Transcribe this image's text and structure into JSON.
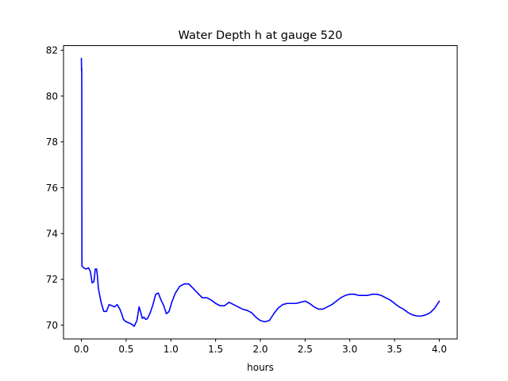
{
  "chart_data": {
    "type": "line",
    "title": "Water Depth h at gauge 520",
    "xlabel": "hours",
    "ylabel": "",
    "xlim": [
      -0.2,
      4.2
    ],
    "ylim": [
      69.4,
      82.2
    ],
    "xticks": [
      0.0,
      0.5,
      1.0,
      1.5,
      2.0,
      2.5,
      3.0,
      3.5,
      4.0
    ],
    "xtick_labels": [
      "0.0",
      "0.5",
      "1.0",
      "1.5",
      "2.0",
      "2.5",
      "3.0",
      "3.5",
      "4.0"
    ],
    "yticks": [
      70,
      72,
      74,
      76,
      78,
      80,
      82
    ],
    "ytick_labels": [
      "70",
      "72",
      "74",
      "76",
      "78",
      "80",
      "82"
    ],
    "grid": false,
    "series": [
      {
        "color": "#0000ff",
        "x": [
          0.0,
          0.002,
          0.004,
          0.006,
          0.01,
          0.03,
          0.05,
          0.08,
          0.1,
          0.12,
          0.14,
          0.155,
          0.17,
          0.18,
          0.19,
          0.2,
          0.22,
          0.25,
          0.28,
          0.31,
          0.34,
          0.37,
          0.4,
          0.43,
          0.45,
          0.47,
          0.5,
          0.53,
          0.56,
          0.59,
          0.62,
          0.645,
          0.66,
          0.68,
          0.7,
          0.72,
          0.74,
          0.77,
          0.8,
          0.83,
          0.86,
          0.89,
          0.92,
          0.95,
          0.98,
          1.01,
          1.05,
          1.1,
          1.15,
          1.2,
          1.25,
          1.3,
          1.35,
          1.4,
          1.45,
          1.5,
          1.55,
          1.6,
          1.65,
          1.7,
          1.75,
          1.8,
          1.85,
          1.9,
          1.95,
          2.0,
          2.05,
          2.1,
          2.15,
          2.2,
          2.25,
          2.3,
          2.35,
          2.4,
          2.45,
          2.5,
          2.55,
          2.6,
          2.65,
          2.7,
          2.75,
          2.8,
          2.85,
          2.9,
          2.95,
          3.0,
          3.05,
          3.1,
          3.15,
          3.2,
          3.25,
          3.3,
          3.35,
          3.4,
          3.45,
          3.5,
          3.55,
          3.6,
          3.65,
          3.7,
          3.75,
          3.8,
          3.85,
          3.9,
          3.95,
          4.0
        ],
        "y": [
          81.65,
          81.1,
          81.2,
          72.6,
          72.55,
          72.5,
          72.45,
          72.5,
          72.35,
          71.85,
          71.9,
          72.45,
          72.45,
          72.1,
          71.6,
          71.4,
          71.0,
          70.6,
          70.6,
          70.9,
          70.85,
          70.8,
          70.9,
          70.7,
          70.5,
          70.25,
          70.15,
          70.1,
          70.05,
          69.95,
          70.2,
          70.8,
          70.6,
          70.3,
          70.35,
          70.25,
          70.3,
          70.55,
          70.9,
          71.35,
          71.4,
          71.1,
          70.85,
          70.5,
          70.6,
          71.0,
          71.4,
          71.7,
          71.8,
          71.8,
          71.6,
          71.4,
          71.2,
          71.2,
          71.1,
          70.95,
          70.85,
          70.85,
          71.0,
          70.9,
          70.8,
          70.7,
          70.65,
          70.55,
          70.35,
          70.2,
          70.15,
          70.2,
          70.5,
          70.75,
          70.9,
          70.95,
          70.95,
          70.95,
          71.0,
          71.05,
          70.95,
          70.8,
          70.7,
          70.7,
          70.8,
          70.9,
          71.05,
          71.2,
          71.3,
          71.35,
          71.35,
          71.3,
          71.3,
          71.3,
          71.35,
          71.35,
          71.3,
          71.2,
          71.1,
          70.95,
          70.8,
          70.7,
          70.55,
          70.45,
          70.4,
          70.4,
          70.45,
          70.55,
          70.75,
          71.05
        ]
      }
    ]
  }
}
